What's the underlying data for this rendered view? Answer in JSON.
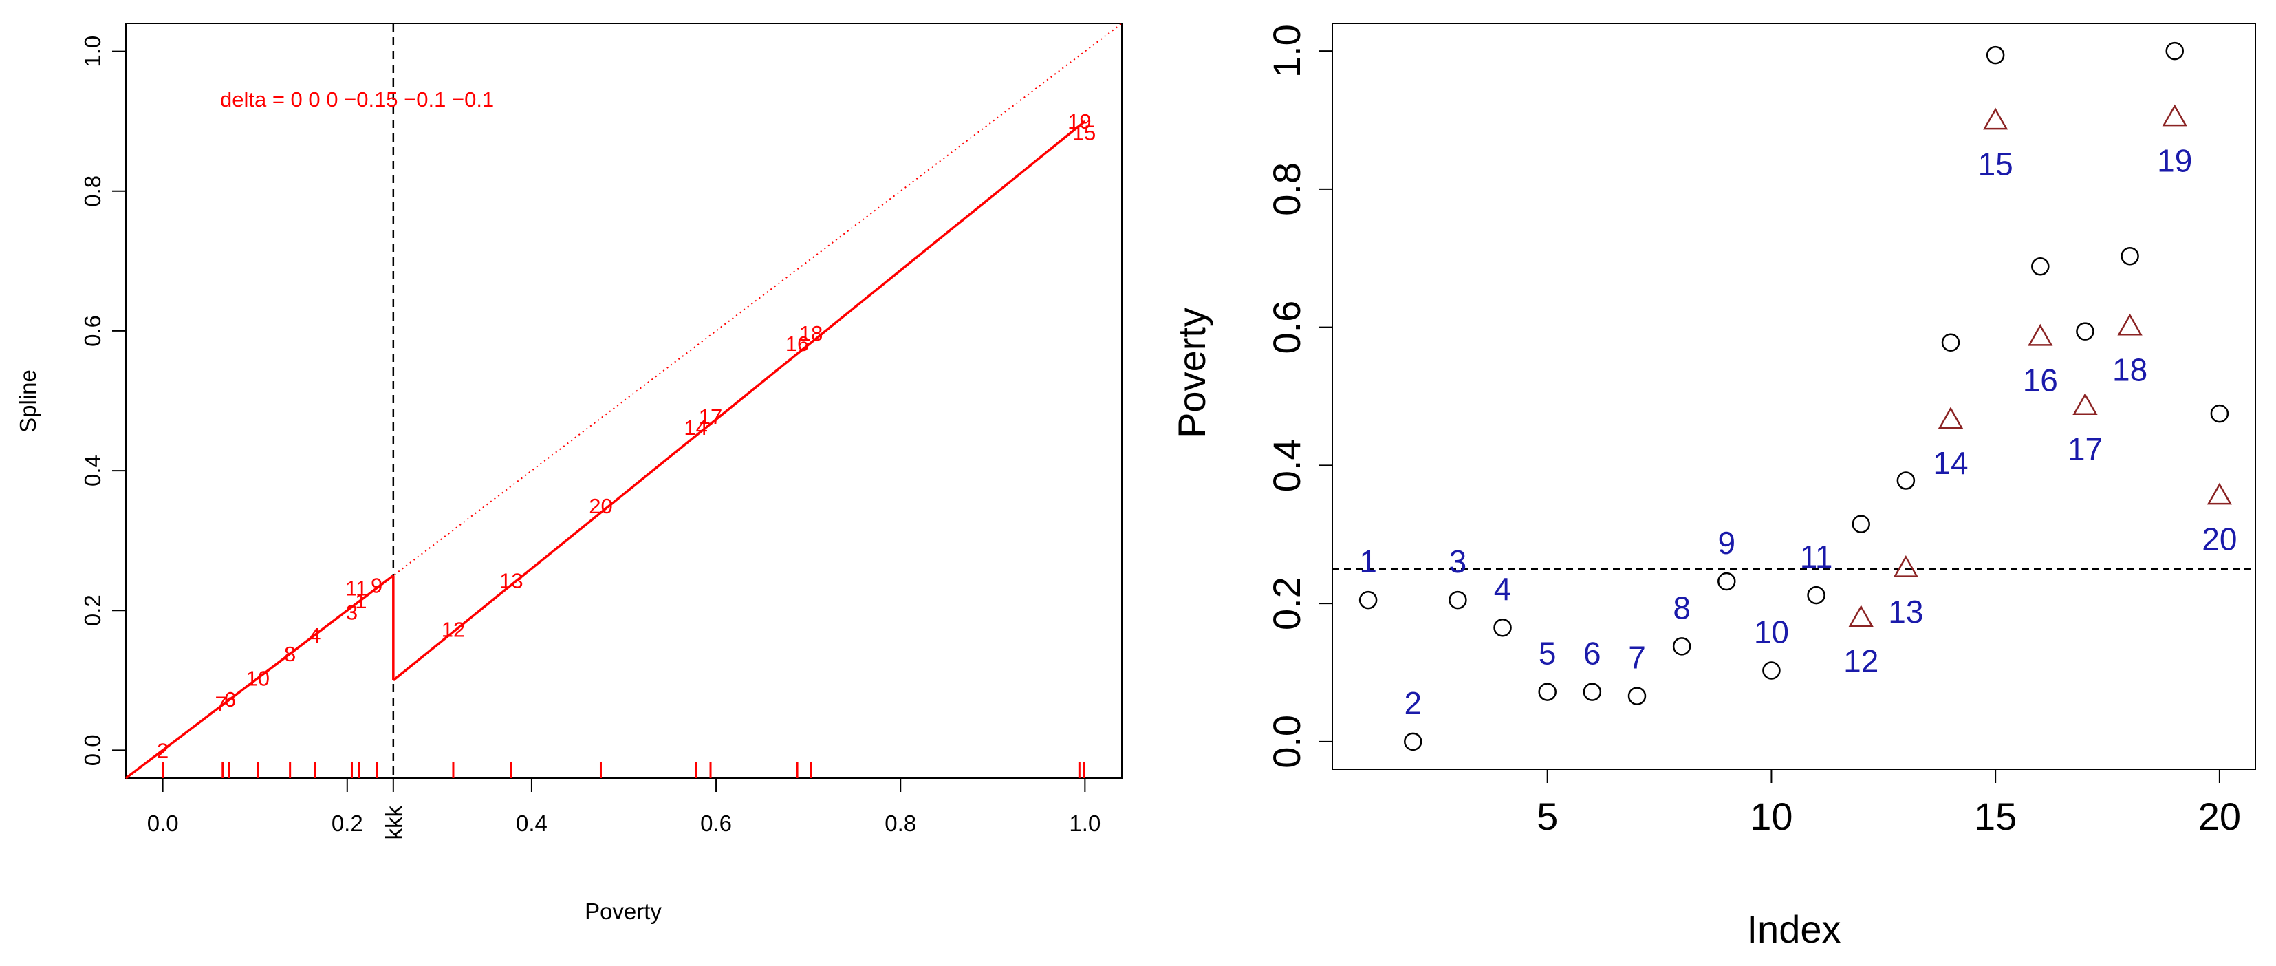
{
  "chart_data": [
    {
      "type": "line",
      "xlabel": "Poverty",
      "ylabel": "Spline",
      "xlim": [
        -0.04,
        1.04
      ],
      "ylim": [
        -0.04,
        1.04
      ],
      "x_ticks": [
        "0.0",
        "0.2",
        "0.4",
        "0.6",
        "0.8",
        "1.0"
      ],
      "y_ticks": [
        "0.0",
        "0.2",
        "0.4",
        "0.6",
        "0.8",
        "1.0"
      ],
      "annotation": "delta = 0 0 0 −0.15 −0.1 −0.1",
      "vline": {
        "x": 0.25,
        "label": "kkk"
      },
      "dotted_line": {
        "x": [
          -0.04,
          1.04
        ],
        "y": [
          -0.04,
          1.04
        ]
      },
      "spline_segments": [
        {
          "x": [
            -0.04,
            0.25
          ],
          "y": [
            -0.04,
            0.25
          ]
        },
        {
          "x": [
            0.25,
            0.25
          ],
          "y": [
            0.25,
            0.1
          ]
        },
        {
          "x": [
            0.25,
            1.0
          ],
          "y": [
            0.1,
            0.9
          ]
        }
      ],
      "point_labels": [
        {
          "label": "2",
          "x": 0.0,
          "y": 0.0
        },
        {
          "label": "7",
          "x": 0.063,
          "y": 0.067
        },
        {
          "label": "6",
          "x": 0.073,
          "y": 0.073
        },
        {
          "label": "10",
          "x": 0.103,
          "y": 0.103
        },
        {
          "label": "8",
          "x": 0.138,
          "y": 0.138
        },
        {
          "label": "4",
          "x": 0.165,
          "y": 0.165
        },
        {
          "label": "3",
          "x": 0.205,
          "y": 0.198
        },
        {
          "label": "1",
          "x": 0.215,
          "y": 0.214
        },
        {
          "label": "11",
          "x": 0.21,
          "y": 0.232
        },
        {
          "label": "9",
          "x": 0.232,
          "y": 0.236
        },
        {
          "label": "12",
          "x": 0.315,
          "y": 0.173
        },
        {
          "label": "13",
          "x": 0.378,
          "y": 0.243
        },
        {
          "label": "20",
          "x": 0.475,
          "y": 0.35
        },
        {
          "label": "14",
          "x": 0.578,
          "y": 0.462
        },
        {
          "label": "17",
          "x": 0.594,
          "y": 0.478
        },
        {
          "label": "16",
          "x": 0.688,
          "y": 0.582
        },
        {
          "label": "18",
          "x": 0.703,
          "y": 0.597
        },
        {
          "label": "19",
          "x": 0.994,
          "y": 0.9
        },
        {
          "label": "15",
          "x": 0.999,
          "y": 0.884
        }
      ],
      "rug": [
        0.0,
        0.065,
        0.072,
        0.103,
        0.138,
        0.165,
        0.205,
        0.213,
        0.232,
        0.315,
        0.378,
        0.475,
        0.578,
        0.594,
        0.688,
        0.703,
        0.994,
        0.999
      ],
      "colors": {
        "spline": "#ff0000",
        "reference": "#000000"
      }
    },
    {
      "type": "scatter",
      "xlabel": "Index",
      "ylabel": "Poverty",
      "xlim": [
        0.2,
        20.8
      ],
      "ylim": [
        -0.04,
        1.04
      ],
      "x_ticks": [
        "5",
        "10",
        "15",
        "20"
      ],
      "y_ticks": [
        "0.0",
        "0.2",
        "0.4",
        "0.6",
        "0.8",
        "1.0"
      ],
      "hline": 0.25,
      "series": [
        {
          "marker": "circle",
          "x": [
            1,
            2,
            3,
            4,
            5,
            6,
            7,
            8,
            9,
            10,
            11,
            12,
            13,
            14,
            15,
            16,
            17,
            18,
            19,
            20
          ],
          "y": [
            0.205,
            0.0,
            0.205,
            0.165,
            0.072,
            0.072,
            0.066,
            0.138,
            0.232,
            0.103,
            0.212,
            0.315,
            0.378,
            0.578,
            0.994,
            0.688,
            0.594,
            0.703,
            1.0,
            0.475
          ]
        },
        {
          "marker": "triangle",
          "x": [
            12,
            13,
            14,
            15,
            16,
            17,
            18,
            19,
            20
          ],
          "y": [
            0.178,
            0.25,
            0.465,
            0.898,
            0.585,
            0.485,
            0.6,
            0.903,
            0.355
          ]
        }
      ],
      "index_labels": [
        {
          "label": "1",
          "x": 1,
          "y": 0.205,
          "pos": "above"
        },
        {
          "label": "2",
          "x": 2,
          "y": 0.0,
          "pos": "above"
        },
        {
          "label": "3",
          "x": 3,
          "y": 0.205,
          "pos": "above"
        },
        {
          "label": "4",
          "x": 4,
          "y": 0.165,
          "pos": "above"
        },
        {
          "label": "5",
          "x": 5,
          "y": 0.072,
          "pos": "above"
        },
        {
          "label": "6",
          "x": 6,
          "y": 0.072,
          "pos": "above"
        },
        {
          "label": "7",
          "x": 7,
          "y": 0.066,
          "pos": "above"
        },
        {
          "label": "8",
          "x": 8,
          "y": 0.138,
          "pos": "above"
        },
        {
          "label": "9",
          "x": 9,
          "y": 0.232,
          "pos": "above"
        },
        {
          "label": "10",
          "x": 10,
          "y": 0.103,
          "pos": "above"
        },
        {
          "label": "11",
          "x": 11,
          "y": 0.212,
          "pos": "above"
        },
        {
          "label": "12",
          "x": 12,
          "y": 0.178,
          "pos": "below"
        },
        {
          "label": "13",
          "x": 13,
          "y": 0.25,
          "pos": "below"
        },
        {
          "label": "14",
          "x": 14,
          "y": 0.465,
          "pos": "below"
        },
        {
          "label": "15",
          "x": 15,
          "y": 0.898,
          "pos": "below"
        },
        {
          "label": "16",
          "x": 16,
          "y": 0.585,
          "pos": "below"
        },
        {
          "label": "17",
          "x": 17,
          "y": 0.485,
          "pos": "below"
        },
        {
          "label": "18",
          "x": 18,
          "y": 0.6,
          "pos": "below"
        },
        {
          "label": "19",
          "x": 19,
          "y": 0.903,
          "pos": "below"
        },
        {
          "label": "20",
          "x": 20,
          "y": 0.355,
          "pos": "below"
        }
      ],
      "colors": {
        "circle": "#000000",
        "triangle": "#8b2323",
        "label": "#1a1aaa"
      }
    }
  ]
}
